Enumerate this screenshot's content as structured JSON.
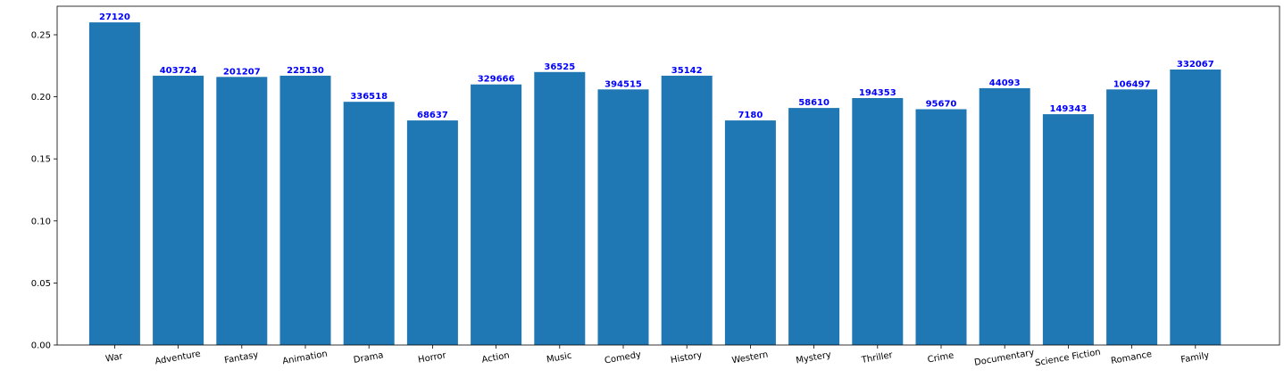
{
  "chart_data": {
    "type": "bar",
    "title": "",
    "xlabel": "",
    "ylabel": "",
    "categories": [
      "War",
      "Adventure",
      "Fantasy",
      "Animation",
      "Drama",
      "Horror",
      "Action",
      "Music",
      "Comedy",
      "History",
      "Western",
      "Mystery",
      "Thriller",
      "Crime",
      "Documentary",
      "Science Fiction",
      "Romance",
      "Family"
    ],
    "values": [
      0.26,
      0.217,
      0.216,
      0.217,
      0.196,
      0.181,
      0.21,
      0.22,
      0.206,
      0.217,
      0.181,
      0.191,
      0.199,
      0.19,
      0.207,
      0.186,
      0.206,
      0.222
    ],
    "bar_labels": [
      "27120",
      "403724",
      "201207",
      "225130",
      "336518",
      "68637",
      "329666",
      "36525",
      "394515",
      "35142",
      "7180",
      "58610",
      "194353",
      "95670",
      "44093",
      "149343",
      "106497",
      "332067"
    ],
    "ylim": [
      0,
      0.273
    ],
    "yticks": [
      "0.00",
      "0.05",
      "0.10",
      "0.15",
      "0.20",
      "0.25"
    ],
    "ytick_values": [
      0,
      0.05,
      0.1,
      0.15,
      0.2,
      0.25
    ],
    "xtick_rotation_deg": 10,
    "grid": false,
    "legend": "none",
    "colors": {
      "bar": "#1f77b4",
      "bar_label": "#0000ff",
      "axis": "#000000"
    }
  }
}
